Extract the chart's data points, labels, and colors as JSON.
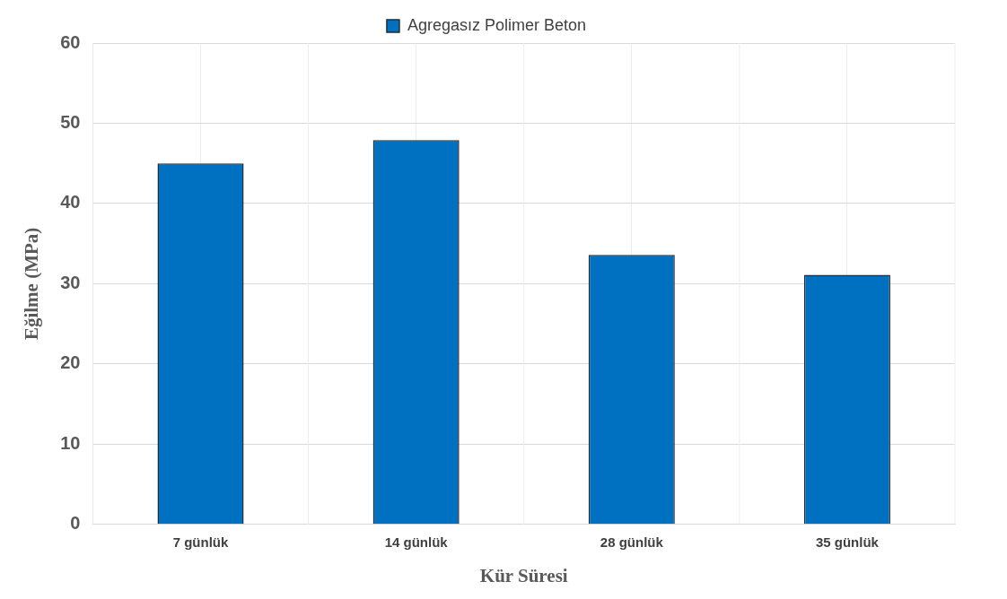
{
  "chart_data": {
    "type": "bar",
    "xlabel": "Kür Süresi",
    "ylabel": "Eğilme (MPa)",
    "categories": [
      "7 günlük",
      "14 günlük",
      "28 günlük",
      "35 günlük"
    ],
    "series": [
      {
        "name": "Agregasız Polimer Beton",
        "color": "#0070c0",
        "values": [
          45,
          47.9,
          33.6,
          31.1
        ]
      }
    ],
    "ylim": [
      0,
      60
    ],
    "yticks": [
      0,
      10,
      20,
      30,
      40,
      50,
      60
    ],
    "grid": true,
    "legend": "top"
  }
}
